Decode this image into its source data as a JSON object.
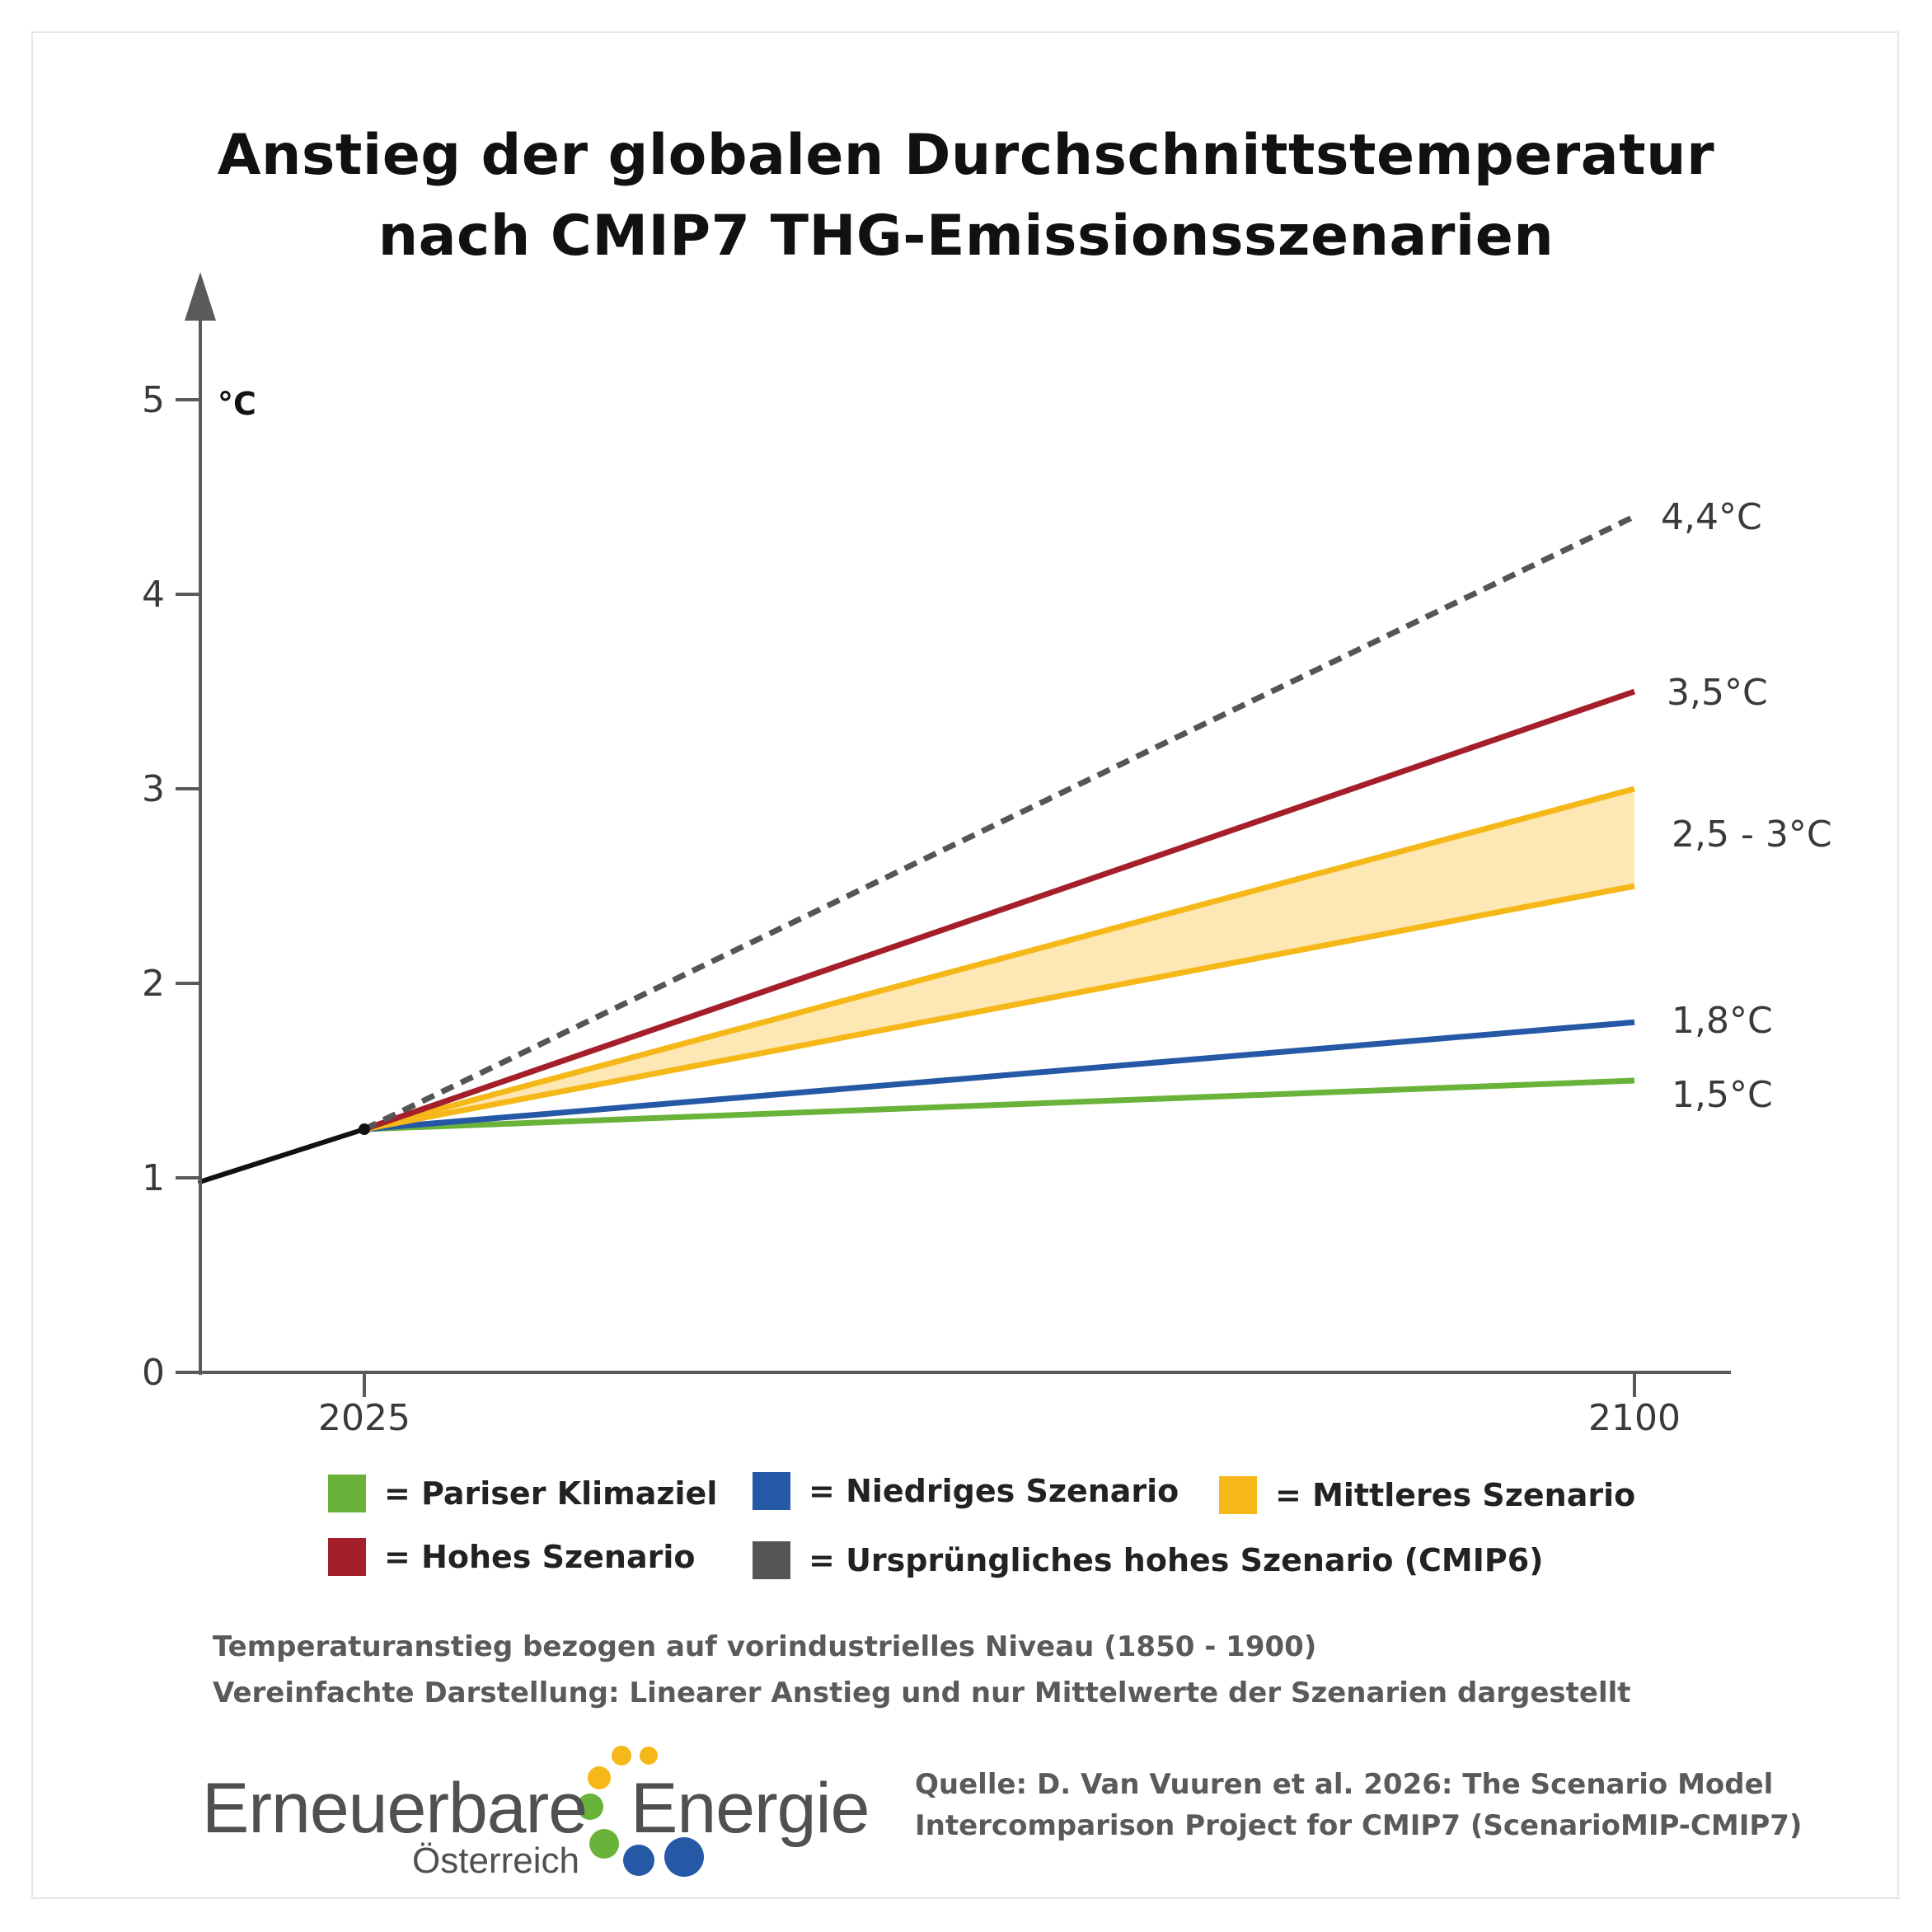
{
  "chart_data": {
    "type": "line",
    "title_line1": "Anstieg der globalen Durchschnittstemperatur",
    "title_line2": "nach CMIP7 THG-Emissionsszenarien",
    "unit_label": "°C",
    "y_ticks": [
      "0",
      "1",
      "2",
      "3",
      "4",
      "5"
    ],
    "ylim": [
      0,
      5.5
    ],
    "x_ticks": [
      "2025",
      "2100"
    ],
    "xlim": [
      2015,
      2107
    ],
    "history": {
      "x": [
        2015,
        2025
      ],
      "y": [
        0.98,
        1.25
      ]
    },
    "series": [
      {
        "key": "dashed",
        "values": [
          1.25,
          4.4
        ],
        "x": [
          2025,
          2100
        ],
        "color": "#555555",
        "dashed": true,
        "end_label": "4,4°C"
      },
      {
        "key": "high",
        "values": [
          1.25,
          3.5
        ],
        "x": [
          2025,
          2100
        ],
        "color": "#a51f2b",
        "end_label": "3,5°C"
      },
      {
        "key": "mid_upper",
        "values": [
          1.25,
          3.0
        ],
        "x": [
          2025,
          2100
        ],
        "color": "#f6b818"
      },
      {
        "key": "mid_lower",
        "values": [
          1.25,
          2.5
        ],
        "x": [
          2025,
          2100
        ],
        "color": "#f6b818"
      },
      {
        "key": "low",
        "values": [
          1.25,
          1.8
        ],
        "x": [
          2025,
          2100
        ],
        "color": "#2558a5",
        "end_label": "1,8°C"
      },
      {
        "key": "paris",
        "values": [
          1.25,
          1.5
        ],
        "x": [
          2025,
          2100
        ],
        "color": "#69b33a",
        "end_label": "1,5°C"
      }
    ],
    "band_label": "2,5 - 3°C",
    "band_color": "#fde8b5",
    "grid": false
  },
  "legend": [
    {
      "label": "= Pariser Klimaziel",
      "color": "#69b33a"
    },
    {
      "label": "= Niedriges Szenario",
      "color": "#2558a5"
    },
    {
      "label": "= Mittleres Szenario",
      "color": "#f6b818"
    },
    {
      "label": "= Hohes Szenario",
      "color": "#a51f2b"
    },
    {
      "label": "= Ursprüngliches hohes Szenario (CMIP6)",
      "color": "#555555"
    }
  ],
  "notes": {
    "line1": "Temperaturanstieg bezogen auf vorindustrielles Niveau (1850 - 1900)",
    "line2": "Vereinfachte Darstellung: Linearer Anstieg und nur Mittelwerte der Szenarien dargestellt"
  },
  "logo": {
    "word1": "Erneuerbare",
    "word2": "Energie",
    "word3": "Österreich",
    "dot_colors": [
      "#f6b818",
      "#69b33a",
      "#2558a5"
    ]
  },
  "source": {
    "line1": "Quelle: D. Van Vuuren et al. 2026: The Scenario Model",
    "line2": "Intercomparison Project for CMIP7 (ScenarioMIP-CMIP7)"
  }
}
